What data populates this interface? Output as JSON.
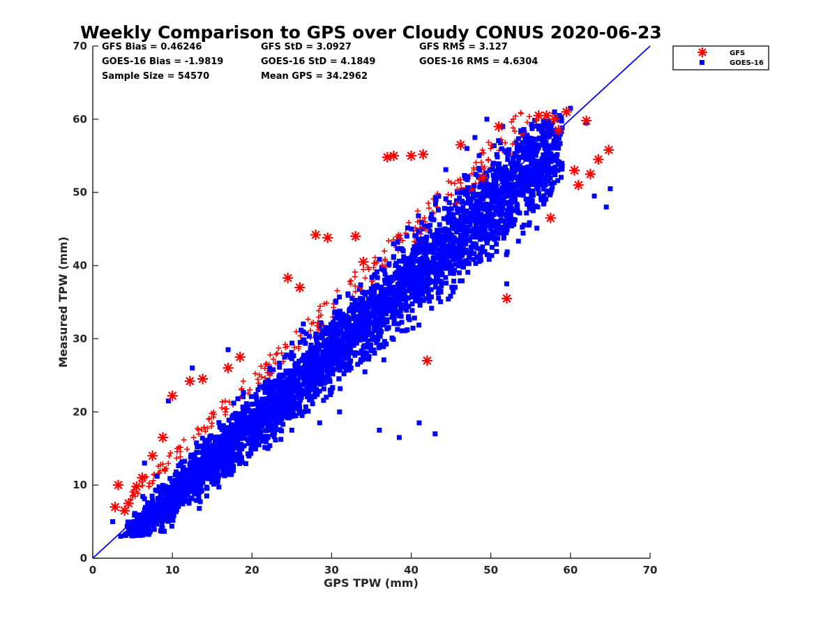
{
  "chart_data": {
    "type": "scatter",
    "title": "Weekly Comparison to GPS over Cloudy CONUS 2020-06-23",
    "xlabel": "GPS TPW (mm)",
    "ylabel": "Measured TPW (mm)",
    "xlim": [
      0,
      70
    ],
    "ylim": [
      0,
      70
    ],
    "xticks": [
      "0",
      "10",
      "20",
      "30",
      "40",
      "50",
      "60",
      "70"
    ],
    "yticks": [
      "0",
      "10",
      "20",
      "30",
      "40",
      "50",
      "60",
      "70"
    ],
    "grid": false,
    "legend_position": "top-right outside",
    "stats": [
      [
        "GFS Bias = 0.46246",
        "GFS StD = 3.0927",
        "GFS RMS = 3.127"
      ],
      [
        "GOES-16 Bias = -1.9819",
        "GOES-16 StD = 4.1849",
        "GOES-16 RMS = 4.6304"
      ],
      [
        "Sample Size = 54570",
        "Mean GPS = 34.2962",
        ""
      ]
    ],
    "reference_line": {
      "x": [
        0,
        70
      ],
      "y": [
        0,
        70
      ],
      "color": "#0000ff"
    },
    "series": [
      {
        "name": "GFS",
        "marker": "asterisk",
        "color": "#ff0000",
        "x": [
          2.8,
          3.2,
          4.0,
          4.5,
          5.5,
          6.2,
          7.5,
          8.8,
          10.0,
          12.2,
          13.8,
          18.5,
          24.5,
          28.0,
          29.5,
          33.0,
          37.0,
          37.8,
          40.0,
          41.5,
          46.2,
          49.0,
          52.0,
          56.0,
          57.0,
          57.5,
          58.0,
          59.5,
          60.5,
          61.0,
          62.0,
          62.5,
          63.5,
          64.8,
          58.5,
          51.0,
          42.0,
          34.0,
          26.0,
          17.0
        ],
        "y": [
          7.0,
          10.0,
          6.5,
          7.5,
          9.8,
          11.0,
          14.0,
          16.5,
          22.2,
          24.2,
          24.5,
          27.5,
          38.3,
          44.2,
          43.8,
          44.0,
          54.8,
          55.0,
          55.0,
          55.2,
          56.5,
          52.0,
          35.5,
          60.5,
          60.5,
          46.5,
          60.0,
          61.0,
          53.0,
          51.0,
          59.8,
          52.5,
          54.5,
          55.8,
          58.5,
          59.0,
          27.0,
          40.5,
          37.0,
          26.0
        ]
      },
      {
        "name": "GOES-16",
        "marker": "square",
        "color": "#0000ff",
        "x": [
          2.5,
          3.5,
          5.0,
          16.5,
          17.0,
          22.0,
          25.0,
          28.5,
          31.0,
          36.0,
          38.5,
          39.0,
          41.0,
          43.0,
          47.0,
          48.0,
          49.5,
          51.5,
          52.0,
          54.0,
          58.0,
          60.0,
          62.0,
          63.0,
          64.5,
          65.0,
          12.5,
          9.5,
          6.5
        ],
        "y": [
          5.0,
          3.0,
          3.5,
          17.0,
          28.5,
          15.0,
          17.5,
          18.5,
          20.0,
          17.5,
          16.5,
          42.0,
          18.5,
          17.0,
          56.0,
          57.5,
          60.0,
          59.0,
          37.5,
          56.0,
          61.0,
          61.5,
          59.5,
          49.5,
          48.0,
          50.5,
          26.0,
          21.5,
          13.0
        ]
      }
    ]
  }
}
